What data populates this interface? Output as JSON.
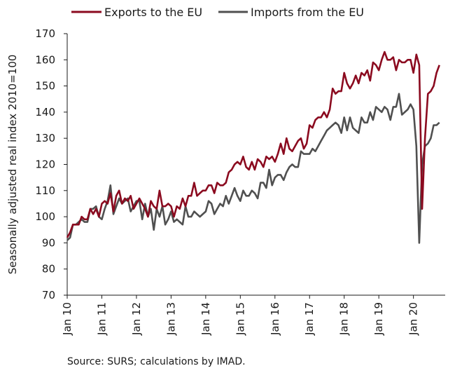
{
  "chart_data": {
    "type": "line",
    "ylabel": "Seasonally adjusted real index 2010=100",
    "ylim": [
      70,
      170
    ],
    "yticks": [
      70,
      80,
      90,
      100,
      110,
      120,
      130,
      140,
      150,
      160,
      170
    ],
    "xlim": [
      2010.0,
      2020.917
    ],
    "xticks": [
      {
        "label": "Jan 10",
        "value": 2010
      },
      {
        "label": "Jan 11",
        "value": 2011
      },
      {
        "label": "Jan 12",
        "value": 2012
      },
      {
        "label": "Jan 13",
        "value": 2013
      },
      {
        "label": "Jan 14",
        "value": 2014
      },
      {
        "label": "Jan 15",
        "value": 2015
      },
      {
        "label": "Jan 16",
        "value": 2016
      },
      {
        "label": "Jan 17",
        "value": 2017
      },
      {
        "label": "Jan 18",
        "value": 2018
      },
      {
        "label": "Jan 19",
        "value": 2019
      },
      {
        "label": "Jan 20",
        "value": 2020
      }
    ],
    "grid": false,
    "legend_position": "top",
    "series": [
      {
        "name": "Exports to the EU",
        "color": "#8b0a1f",
        "start": "2010-01",
        "values": [
          92,
          94,
          97,
          97,
          97,
          100,
          99,
          99,
          103,
          101,
          103,
          100,
          105,
          106,
          105,
          109,
          102,
          108,
          110,
          105,
          107,
          106,
          108,
          103,
          105,
          107,
          105,
          103,
          100,
          106,
          104,
          103,
          110,
          104,
          104,
          105,
          104,
          100,
          104,
          103,
          107,
          104,
          108,
          108,
          113,
          108,
          109,
          110,
          110,
          112,
          112,
          109,
          113,
          112,
          112,
          113,
          117,
          118,
          120,
          121,
          120,
          123,
          119,
          118,
          121,
          118,
          122,
          121,
          119,
          123,
          122,
          123,
          121,
          124,
          128,
          124,
          130,
          126,
          125,
          127,
          129,
          130,
          126,
          128,
          135,
          134,
          137,
          138,
          138,
          140,
          138,
          141,
          149,
          147,
          148,
          148,
          155,
          151,
          149,
          151,
          154,
          151,
          155,
          154,
          156,
          152,
          159,
          158,
          156,
          160,
          163,
          160,
          160,
          161,
          156,
          160,
          159,
          159,
          160,
          160,
          155,
          162,
          158,
          103,
          130,
          147,
          148,
          150,
          155,
          158
        ]
      },
      {
        "name": "Imports from the EU",
        "color": "#505050",
        "start": "2010-01",
        "values": [
          91,
          92,
          97,
          97,
          98,
          99,
          98,
          98,
          103,
          103,
          104,
          100,
          99,
          103,
          106,
          112,
          101,
          104,
          107,
          105,
          106,
          107,
          102,
          104,
          106,
          106,
          99,
          105,
          100,
          103,
          95,
          103,
          100,
          104,
          97,
          99,
          102,
          98,
          99,
          98,
          97,
          104,
          100,
          100,
          102,
          101,
          100,
          101,
          102,
          106,
          105,
          101,
          103,
          105,
          104,
          108,
          105,
          108,
          111,
          108,
          106,
          110,
          108,
          108,
          110,
          109,
          107,
          113,
          113,
          111,
          118,
          112,
          115,
          116,
          116,
          114,
          117,
          119,
          120,
          119,
          119,
          125,
          124,
          124,
          124,
          126,
          125,
          127,
          129,
          131,
          133,
          134,
          135,
          136,
          135,
          132,
          138,
          133,
          138,
          134,
          133,
          132,
          138,
          136,
          136,
          140,
          137,
          142,
          141,
          140,
          142,
          141,
          137,
          142,
          142,
          147,
          139,
          140,
          141,
          143,
          141,
          127,
          90,
          120,
          127,
          128,
          130,
          135,
          135,
          136
        ]
      }
    ]
  },
  "source_text": "Source: SURS; calculations by IMAD."
}
